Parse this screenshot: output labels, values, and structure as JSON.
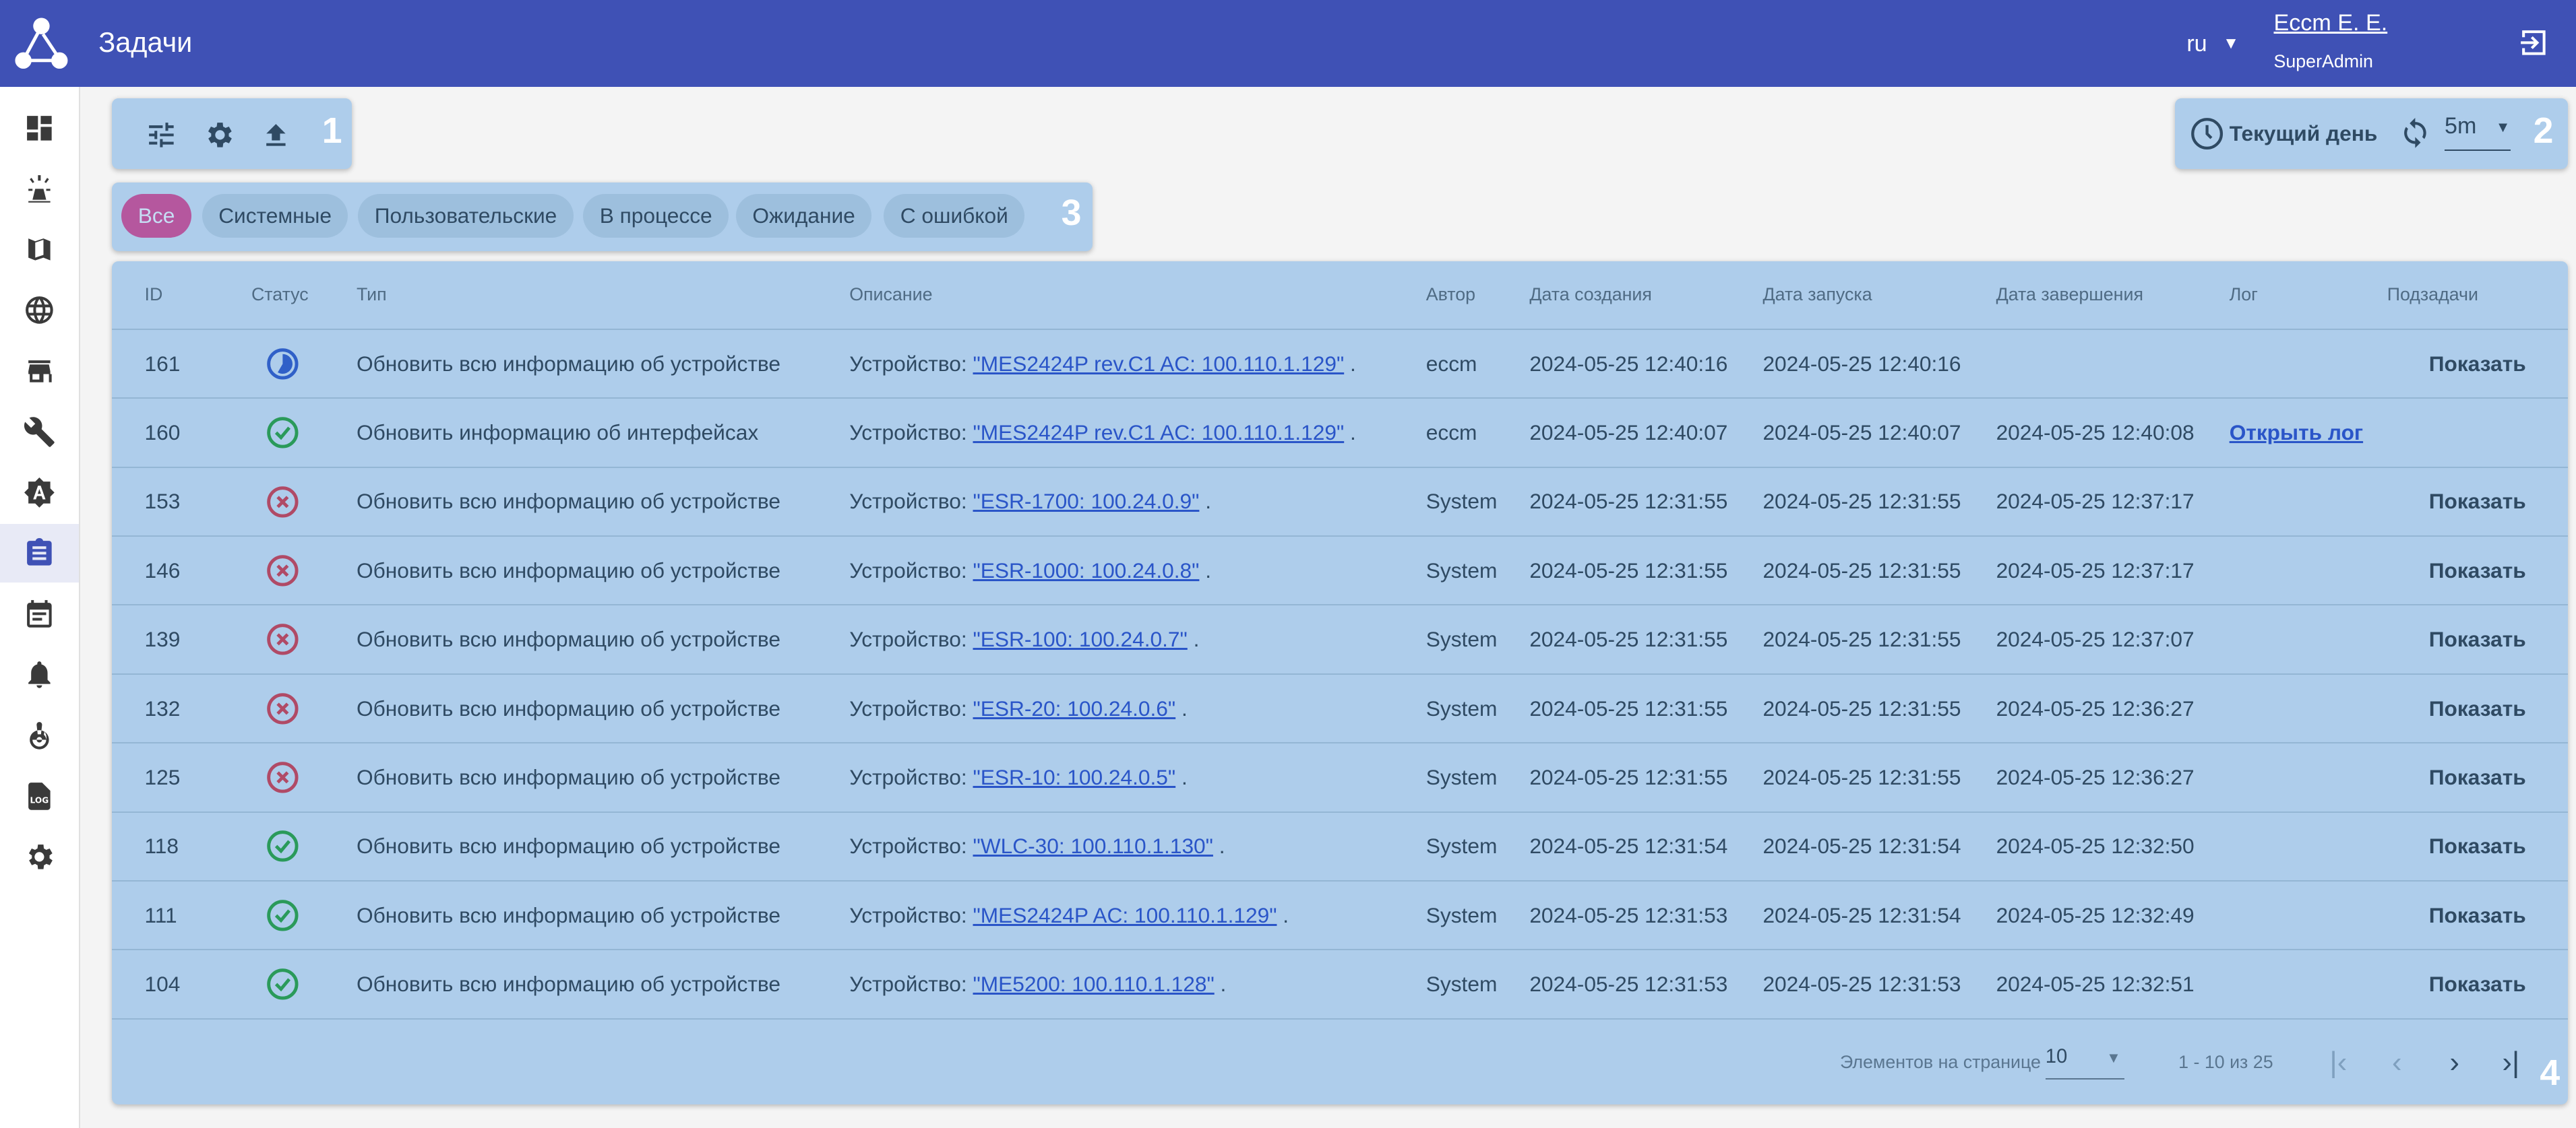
{
  "header": {
    "title": "Задачи",
    "lang": "ru",
    "user": "Eccm E. E.",
    "role": "SuperAdmin"
  },
  "colors": {
    "header": "#3f51b5",
    "panel": "#aecdeb",
    "chip": "#9dbfdd",
    "chip_active": "#b5579e",
    "in_progress": "#3060c8",
    "success": "#2a9a5a",
    "error": "#b04a66",
    "link": "#2a55c8"
  },
  "sidebar": {
    "items": [
      "dashboard-icon",
      "alarm-icon",
      "map-icon",
      "globe-icon",
      "store-icon",
      "wrench-icon",
      "auto-mode-icon",
      "tasks-icon",
      "calendar-icon",
      "bell-icon",
      "target-icon",
      "log-file-icon",
      "settings-icon"
    ],
    "active": "tasks-icon"
  },
  "panels": {
    "p1": "1",
    "p2": "2",
    "p3": "3",
    "p4": "4"
  },
  "time": {
    "range": "Текущий день",
    "refresh": "5m"
  },
  "filters": [
    "Все",
    "Системные",
    "Пользовательские",
    "В процессе",
    "Ожидание",
    "С ошибкой"
  ],
  "table": {
    "columns": [
      "ID",
      "Статус",
      "Тип",
      "Описание",
      "Автор",
      "Дата создания",
      "Дата запуска",
      "Дата завершения",
      "Лог",
      "Подзадачи"
    ],
    "rows": [
      {
        "id": "161",
        "status": "in_progress",
        "type": "Обновить всю информацию об устройстве",
        "desc_prefix": "Устройство: ",
        "device": "\"MES2424P rev.C1 AC: 100.110.1.129\"",
        "author": "eccm",
        "created": "2024-05-25 12:40:16",
        "started": "2024-05-25 12:40:16",
        "finished": "",
        "log": "",
        "subtasks": "Показать"
      },
      {
        "id": "160",
        "status": "success",
        "type": "Обновить информацию об интерфейсах",
        "desc_prefix": "Устройство: ",
        "device": "\"MES2424P rev.C1 AC: 100.110.1.129\"",
        "author": "eccm",
        "created": "2024-05-25 12:40:07",
        "started": "2024-05-25 12:40:07",
        "finished": "2024-05-25 12:40:08",
        "log": "Открыть лог",
        "subtasks": ""
      },
      {
        "id": "153",
        "status": "error",
        "type": "Обновить всю информацию об устройстве",
        "desc_prefix": "Устройство: ",
        "device": "\"ESR-1700: 100.24.0.9\"",
        "author": "System",
        "created": "2024-05-25 12:31:55",
        "started": "2024-05-25 12:31:55",
        "finished": "2024-05-25 12:37:17",
        "log": "",
        "subtasks": "Показать"
      },
      {
        "id": "146",
        "status": "error",
        "type": "Обновить всю информацию об устройстве",
        "desc_prefix": "Устройство: ",
        "device": "\"ESR-1000: 100.24.0.8\"",
        "author": "System",
        "created": "2024-05-25 12:31:55",
        "started": "2024-05-25 12:31:55",
        "finished": "2024-05-25 12:37:17",
        "log": "",
        "subtasks": "Показать"
      },
      {
        "id": "139",
        "status": "error",
        "type": "Обновить всю информацию об устройстве",
        "desc_prefix": "Устройство: ",
        "device": "\"ESR-100: 100.24.0.7\"",
        "author": "System",
        "created": "2024-05-25 12:31:55",
        "started": "2024-05-25 12:31:55",
        "finished": "2024-05-25 12:37:07",
        "log": "",
        "subtasks": "Показать"
      },
      {
        "id": "132",
        "status": "error",
        "type": "Обновить всю информацию об устройстве",
        "desc_prefix": "Устройство: ",
        "device": "\"ESR-20: 100.24.0.6\"",
        "author": "System",
        "created": "2024-05-25 12:31:55",
        "started": "2024-05-25 12:31:55",
        "finished": "2024-05-25 12:36:27",
        "log": "",
        "subtasks": "Показать"
      },
      {
        "id": "125",
        "status": "error",
        "type": "Обновить всю информацию об устройстве",
        "desc_prefix": "Устройство: ",
        "device": "\"ESR-10: 100.24.0.5\"",
        "author": "System",
        "created": "2024-05-25 12:31:55",
        "started": "2024-05-25 12:31:55",
        "finished": "2024-05-25 12:36:27",
        "log": "",
        "subtasks": "Показать"
      },
      {
        "id": "118",
        "status": "success",
        "type": "Обновить всю информацию об устройстве",
        "desc_prefix": "Устройство: ",
        "device": "\"WLC-30: 100.110.1.130\"",
        "author": "System",
        "created": "2024-05-25 12:31:54",
        "started": "2024-05-25 12:31:54",
        "finished": "2024-05-25 12:32:50",
        "log": "",
        "subtasks": "Показать"
      },
      {
        "id": "111",
        "status": "success",
        "type": "Обновить всю информацию об устройстве",
        "desc_prefix": "Устройство: ",
        "device": "\"MES2424P AC: 100.110.1.129\"",
        "author": "System",
        "created": "2024-05-25 12:31:53",
        "started": "2024-05-25 12:31:54",
        "finished": "2024-05-25 12:32:49",
        "log": "",
        "subtasks": "Показать"
      },
      {
        "id": "104",
        "status": "success",
        "type": "Обновить всю информацию об устройстве",
        "desc_prefix": "Устройство: ",
        "device": "\"ME5200: 100.110.1.128\"",
        "author": "System",
        "created": "2024-05-25 12:31:53",
        "started": "2024-05-25 12:31:53",
        "finished": "2024-05-25 12:32:51",
        "log": "",
        "subtasks": "Показать"
      }
    ]
  },
  "pagination": {
    "per_page_label": "Элементов на странице",
    "per_page": "10",
    "range": "1 - 10 из 25"
  }
}
